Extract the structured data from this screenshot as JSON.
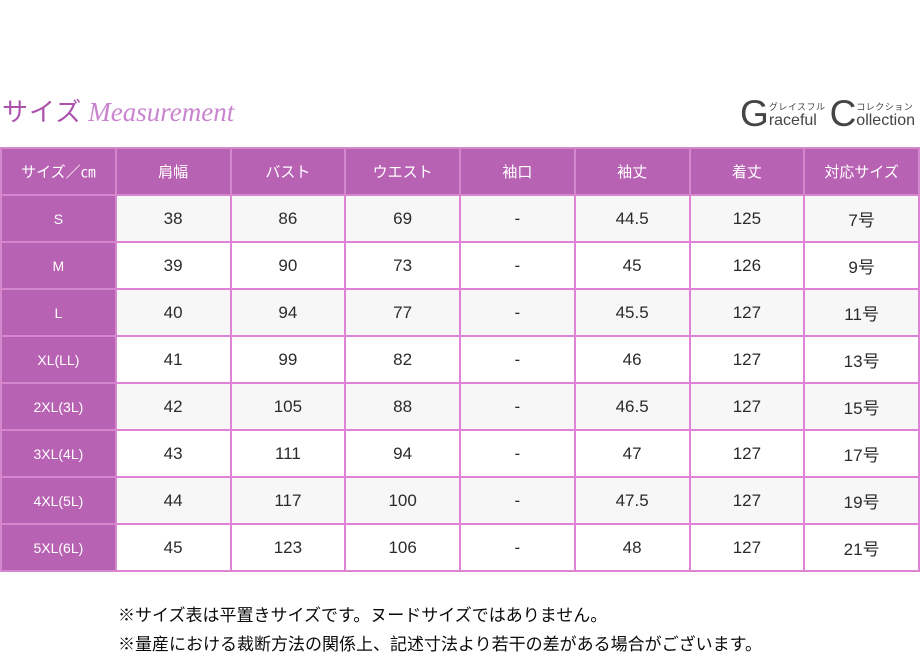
{
  "title": {
    "jp": "サイズ",
    "en": "Measurement"
  },
  "logo": {
    "part1": {
      "initial": "G",
      "kana": "グレイスフル",
      "rest": "raceful"
    },
    "part2": {
      "initial": "C",
      "kana": "コレクション",
      "rest": "ollection"
    }
  },
  "chart_data": {
    "type": "table",
    "title": "サイズ Measurement",
    "columns": [
      "サイズ／㎝",
      "肩幅",
      "バスト",
      "ウエスト",
      "袖口",
      "袖丈",
      "着丈",
      "対応サイズ"
    ],
    "rows": [
      [
        "S",
        "38",
        "86",
        "69",
        "-",
        "44.5",
        "125",
        "7号"
      ],
      [
        "M",
        "39",
        "90",
        "73",
        "-",
        "45",
        "126",
        "9号"
      ],
      [
        "L",
        "40",
        "94",
        "77",
        "-",
        "45.5",
        "127",
        "11号"
      ],
      [
        "XL(LL)",
        "41",
        "99",
        "82",
        "-",
        "46",
        "127",
        "13号"
      ],
      [
        "2XL(3L)",
        "42",
        "105",
        "88",
        "-",
        "46.5",
        "127",
        "15号"
      ],
      [
        "3XL(4L)",
        "43",
        "111",
        "94",
        "-",
        "47",
        "127",
        "17号"
      ],
      [
        "4XL(5L)",
        "44",
        "117",
        "100",
        "-",
        "47.5",
        "127",
        "19号"
      ],
      [
        "5XL(6L)",
        "45",
        "123",
        "106",
        "-",
        "48",
        "127",
        "21号"
      ]
    ]
  },
  "notes": [
    "※サイズ表は平置きサイズです。ヌードサイズではありません。",
    "※量産における裁断方法の関係上、記述寸法より若干の差がある場合がございます。"
  ],
  "colors": {
    "header_purple": "#b862b3",
    "border_pink": "#e083d6",
    "row_alt_gray": "#f7f7f7",
    "title_purple": "#ab53ae",
    "title_script_pink": "#c983cf",
    "logo_gray": "#454545"
  }
}
